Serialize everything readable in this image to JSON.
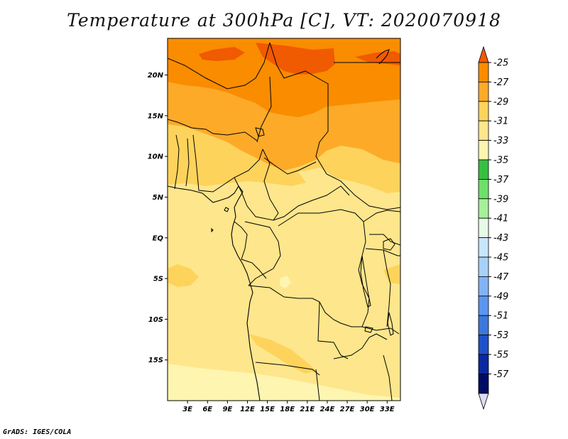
{
  "title": "Temperature at 300hPa [C], VT: 2020070918",
  "credit": "GrADS: IGES/COLA",
  "map": {
    "lon_range": [
      0,
      35
    ],
    "lat_range": [
      -20,
      24.5
    ],
    "lon_ticks": [
      {
        "value": 3,
        "label": "3E"
      },
      {
        "value": 6,
        "label": "6E"
      },
      {
        "value": 9,
        "label": "9E"
      },
      {
        "value": 12,
        "label": "12E"
      },
      {
        "value": 15,
        "label": "15E"
      },
      {
        "value": 18,
        "label": "18E"
      },
      {
        "value": 21,
        "label": "21E"
      },
      {
        "value": 24,
        "label": "24E"
      },
      {
        "value": 27,
        "label": "27E"
      },
      {
        "value": 30,
        "label": "30E"
      },
      {
        "value": 33,
        "label": "33E"
      }
    ],
    "lat_ticks": [
      {
        "value": 20,
        "label": "20N"
      },
      {
        "value": 15,
        "label": "15N"
      },
      {
        "value": 10,
        "label": "10N"
      },
      {
        "value": 5,
        "label": "5N"
      },
      {
        "value": 0,
        "label": "EQ"
      },
      {
        "value": -5,
        "label": "5S"
      },
      {
        "value": -10,
        "label": "10S"
      },
      {
        "value": -15,
        "label": "15S"
      }
    ]
  },
  "colorbar": {
    "labels": [
      "-25",
      "-27",
      "-29",
      "-31",
      "-33",
      "-35",
      "-37",
      "-39",
      "-41",
      "-43",
      "-45",
      "-47",
      "-49",
      "-51",
      "-53",
      "-55",
      "-57"
    ],
    "colors": [
      "#f05a00",
      "#fa8c00",
      "#fdaa28",
      "#fdd35c",
      "#fee68c",
      "#fef5b0",
      "#37c040",
      "#6ee06a",
      "#a6f09a",
      "#e6fae6",
      "#c8e6fa",
      "#a6d2fa",
      "#82b4f5",
      "#5a96f0",
      "#3c78dc",
      "#1e50c8",
      "#0a28a0",
      "#000c64",
      "#dcdcf5"
    ]
  }
}
